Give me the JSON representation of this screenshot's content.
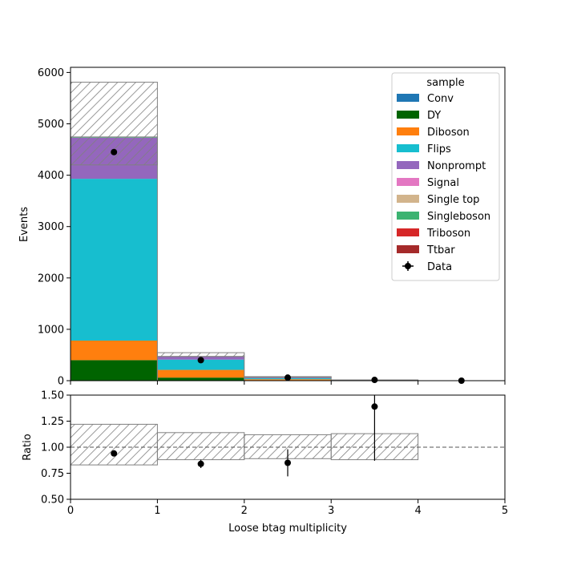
{
  "chart_data": [
    {
      "type": "bar",
      "subtype": "stacked-histogram",
      "xlabel": "Loose btag multiplicity",
      "ylabel": "Events",
      "xlim": [
        0,
        5
      ],
      "ylim": [
        0,
        6100
      ],
      "bin_edges": [
        0,
        1,
        2,
        3,
        4,
        5
      ],
      "x_ticks": [
        0,
        1,
        2,
        3,
        4,
        5
      ],
      "y_ticks": [
        0,
        1000,
        2000,
        3000,
        4000,
        5000,
        6000
      ],
      "legend": {
        "title": "sample",
        "position": "top-right",
        "data_label": "Data"
      },
      "series": [
        {
          "name": "Conv",
          "color": "#1f77b4",
          "values": [
            0,
            0,
            0,
            0,
            0
          ]
        },
        {
          "name": "DY",
          "color": "#006400",
          "values": [
            400,
            60,
            8,
            0,
            0
          ]
        },
        {
          "name": "Diboson",
          "color": "#ff7f0e",
          "values": [
            380,
            150,
            20,
            3,
            0
          ]
        },
        {
          "name": "Flips",
          "color": "#17becf",
          "values": [
            3150,
            200,
            20,
            3,
            0
          ]
        },
        {
          "name": "Nonprompt",
          "color": "#9467bd",
          "values": [
            800,
            60,
            20,
            5,
            0
          ]
        },
        {
          "name": "Signal",
          "color": "#e377c2",
          "values": [
            0,
            0,
            0,
            0,
            0
          ]
        },
        {
          "name": "Single top",
          "color": "#d2b48c",
          "values": [
            0,
            0,
            2,
            0,
            0
          ]
        },
        {
          "name": "Singleboson",
          "color": "#3cb371",
          "values": [
            15,
            0,
            0,
            0,
            0
          ]
        },
        {
          "name": "Triboson",
          "color": "#d62728",
          "values": [
            0,
            0,
            0,
            0,
            0
          ]
        },
        {
          "name": "Ttbar",
          "color": "#a52a2a",
          "values": [
            0,
            2,
            2,
            1,
            0
          ]
        }
      ],
      "uncertainty": {
        "down": [
          4200,
          470,
          65,
          11,
          0
        ],
        "up": [
          5810,
          545,
          79,
          14,
          0
        ]
      },
      "data_points": {
        "x": [
          0.5,
          1.5,
          2.5,
          3.5,
          4.5
        ],
        "y": [
          4450,
          400,
          60,
          15,
          0
        ]
      }
    },
    {
      "type": "scatter",
      "subtype": "ratio",
      "xlabel": "Loose btag multiplicity",
      "ylabel": "Ratio",
      "xlim": [
        0,
        5
      ],
      "ylim": [
        0.5,
        1.5
      ],
      "x_ticks": [
        0,
        1,
        2,
        3,
        4,
        5
      ],
      "y_ticks": [
        "0.50",
        "0.75",
        "1.00",
        "1.25",
        "1.50"
      ],
      "reference_line": 1.0,
      "bin_edges": [
        0,
        1,
        2,
        3,
        4,
        5
      ],
      "band": {
        "low": [
          0.83,
          0.88,
          0.89,
          0.88,
          1.0
        ],
        "high": [
          1.22,
          1.14,
          1.12,
          1.13,
          1.0
        ]
      },
      "points": {
        "x": [
          0.5,
          1.5,
          2.5,
          3.5
        ],
        "y": [
          0.94,
          0.84,
          0.85,
          1.39
        ],
        "err": [
          0.015,
          0.04,
          0.13,
          0.52
        ]
      }
    }
  ]
}
